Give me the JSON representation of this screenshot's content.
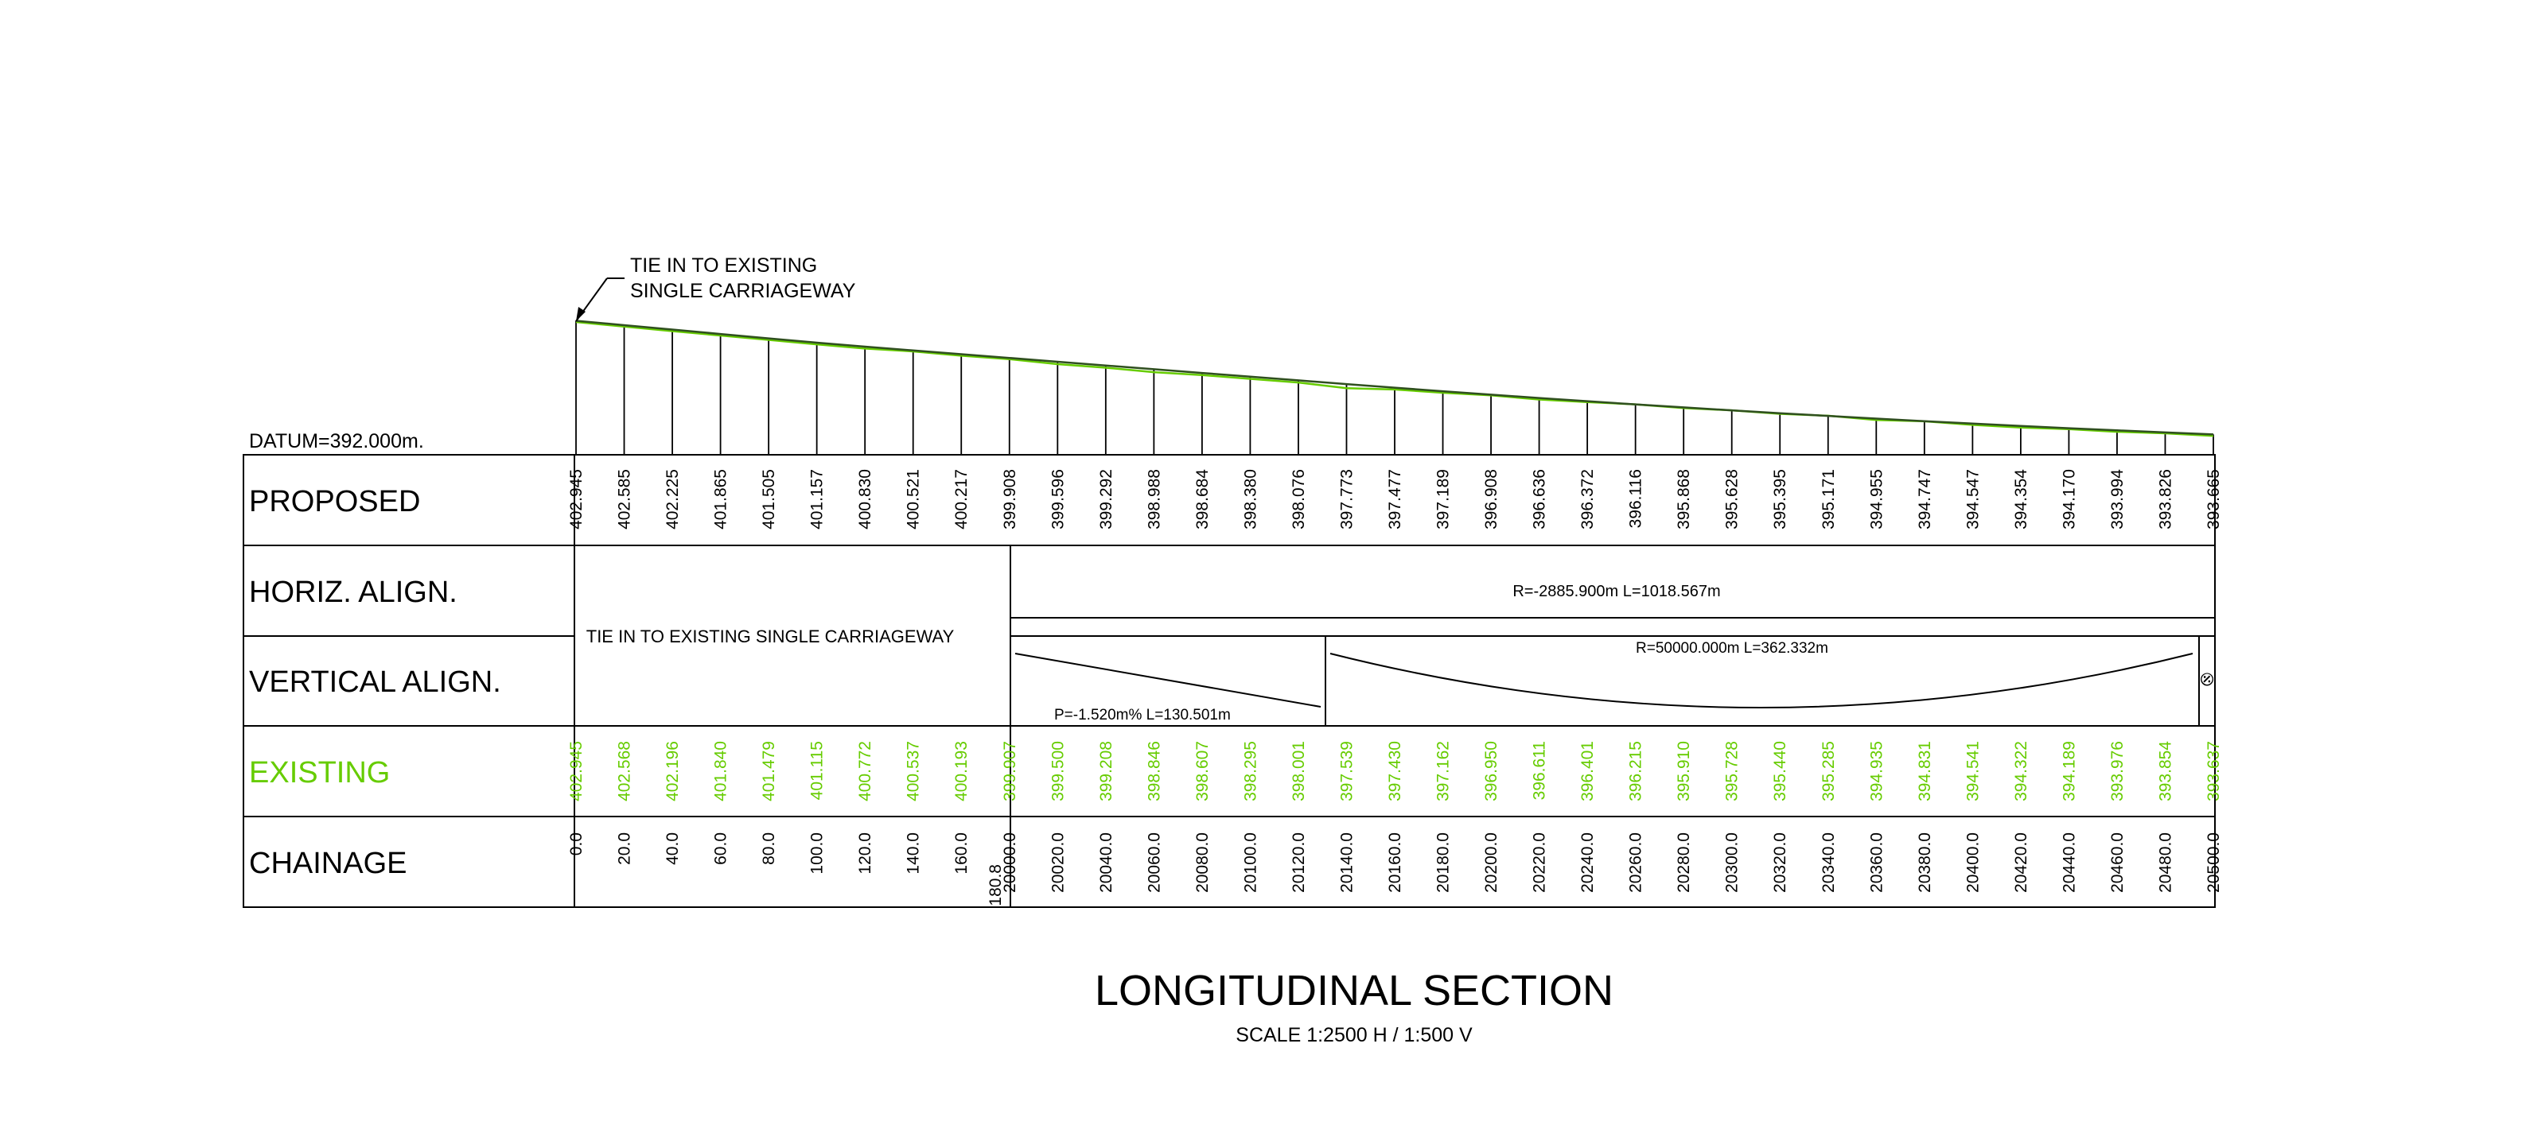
{
  "datum_label": "DATUM=392.000m.",
  "tie_in_note": {
    "line1": "TIE IN TO EXISTING",
    "line2": "SINGLE CARRIAGEWAY"
  },
  "rows": {
    "proposed": "PROPOSED",
    "horiz": "HORIZ. ALIGN.",
    "vertical": "VERTICAL ALIGN.",
    "existing": "EXISTING",
    "chainage": "CHAINAGE"
  },
  "horiz_align": {
    "tie_in_text": "TIE IN TO EXISTING SINGLE CARRIAGEWAY",
    "curve_text": "R=-2885.900m L=1018.567m"
  },
  "vertical_align": {
    "grade_text": "P=-1.520m% L=130.501m",
    "curve_text": "R=50000.000m L=362.332m",
    "end_mark": "⦼"
  },
  "colors": {
    "line": "#000000",
    "existing": "#66cc00",
    "profile": "#2f4f1f"
  },
  "chart_data": {
    "type": "line",
    "title": "LONGITUDINAL SECTION",
    "subtitle": "SCALE 1:2500 H / 1:500 V",
    "datum": 392.0,
    "chainage": [
      "0.0",
      "20.0",
      "40.0",
      "60.0",
      "80.0",
      "100.0",
      "120.0",
      "140.0",
      "160.0",
      "180.8\n20000.0",
      "20020.0",
      "20040.0",
      "20060.0",
      "20080.0",
      "20100.0",
      "20120.0",
      "20140.0",
      "20160.0",
      "20180.0",
      "20200.0",
      "20220.0",
      "20240.0",
      "20260.0",
      "20280.0",
      "20300.0",
      "20320.0",
      "20340.0",
      "20360.0",
      "20380.0",
      "20400.0",
      "20420.0",
      "20440.0",
      "20460.0",
      "20480.0",
      "20500.0"
    ],
    "series": [
      {
        "name": "PROPOSED",
        "values": [
          "402.945",
          "402.585",
          "402.225",
          "401.865",
          "401.505",
          "401.157",
          "400.830",
          "400.521",
          "400.217",
          "399.908",
          "399.596",
          "399.292",
          "398.988",
          "398.684",
          "398.380",
          "398.076",
          "397.773",
          "397.477",
          "397.189",
          "396.908",
          "396.636",
          "396.372",
          "396.116",
          "395.868",
          "395.628",
          "395.395",
          "395.171",
          "394.955",
          "394.747",
          "394.547",
          "394.354",
          "394.170",
          "393.994",
          "393.826",
          "393.665"
        ]
      },
      {
        "name": "EXISTING",
        "values": [
          "402.945",
          "402.568",
          "402.196",
          "401.840",
          "401.479",
          "401.115",
          "400.772",
          "400.537",
          "400.193",
          "399.907",
          "399.500",
          "399.208",
          "398.846",
          "398.607",
          "398.295",
          "398.001",
          "397.539",
          "397.430",
          "397.162",
          "396.950",
          "396.611",
          "396.401",
          "396.215",
          "395.910",
          "395.728",
          "395.440",
          "395.285",
          "394.935",
          "394.831",
          "394.541",
          "394.322",
          "394.189",
          "393.976",
          "393.854",
          "393.637"
        ]
      }
    ]
  }
}
